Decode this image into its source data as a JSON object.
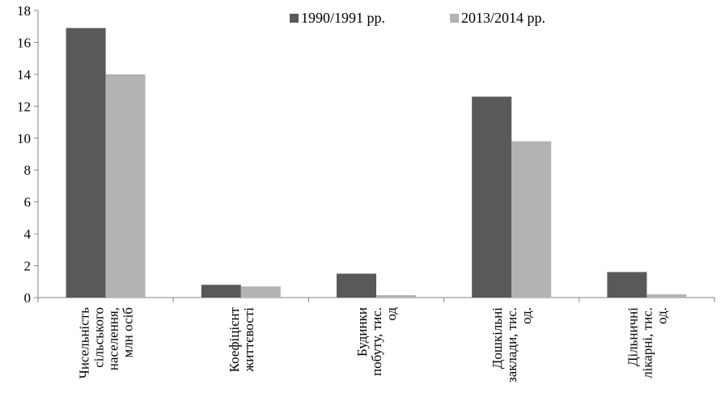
{
  "chart_data": {
    "type": "bar",
    "categories": [
      [
        "Чисельність",
        "сільського",
        "населення,",
        "млн осіб"
      ],
      [
        "Коефіцієнт",
        "життєвості"
      ],
      [
        "Будинки",
        "побуту,  тис.",
        "од"
      ],
      [
        "Дошкільні",
        "заклади, тис.",
        "од."
      ],
      [
        "Дільничні",
        "лікарні, тис.",
        "од."
      ]
    ],
    "series": [
      {
        "name": "1990/1991 рр.",
        "color": "#595959",
        "values": [
          16.9,
          0.8,
          1.5,
          12.6,
          1.6
        ]
      },
      {
        "name": "2013/2014 рр.",
        "color": "#b3b3b3",
        "values": [
          14.0,
          0.7,
          0.15,
          9.8,
          0.2
        ]
      }
    ],
    "ylim": [
      0,
      18
    ],
    "yticks": [
      "0",
      "2",
      "4",
      "6",
      "8",
      "10",
      "12",
      "14",
      "16",
      "18"
    ],
    "legend_position": "top-right",
    "grid": false
  }
}
